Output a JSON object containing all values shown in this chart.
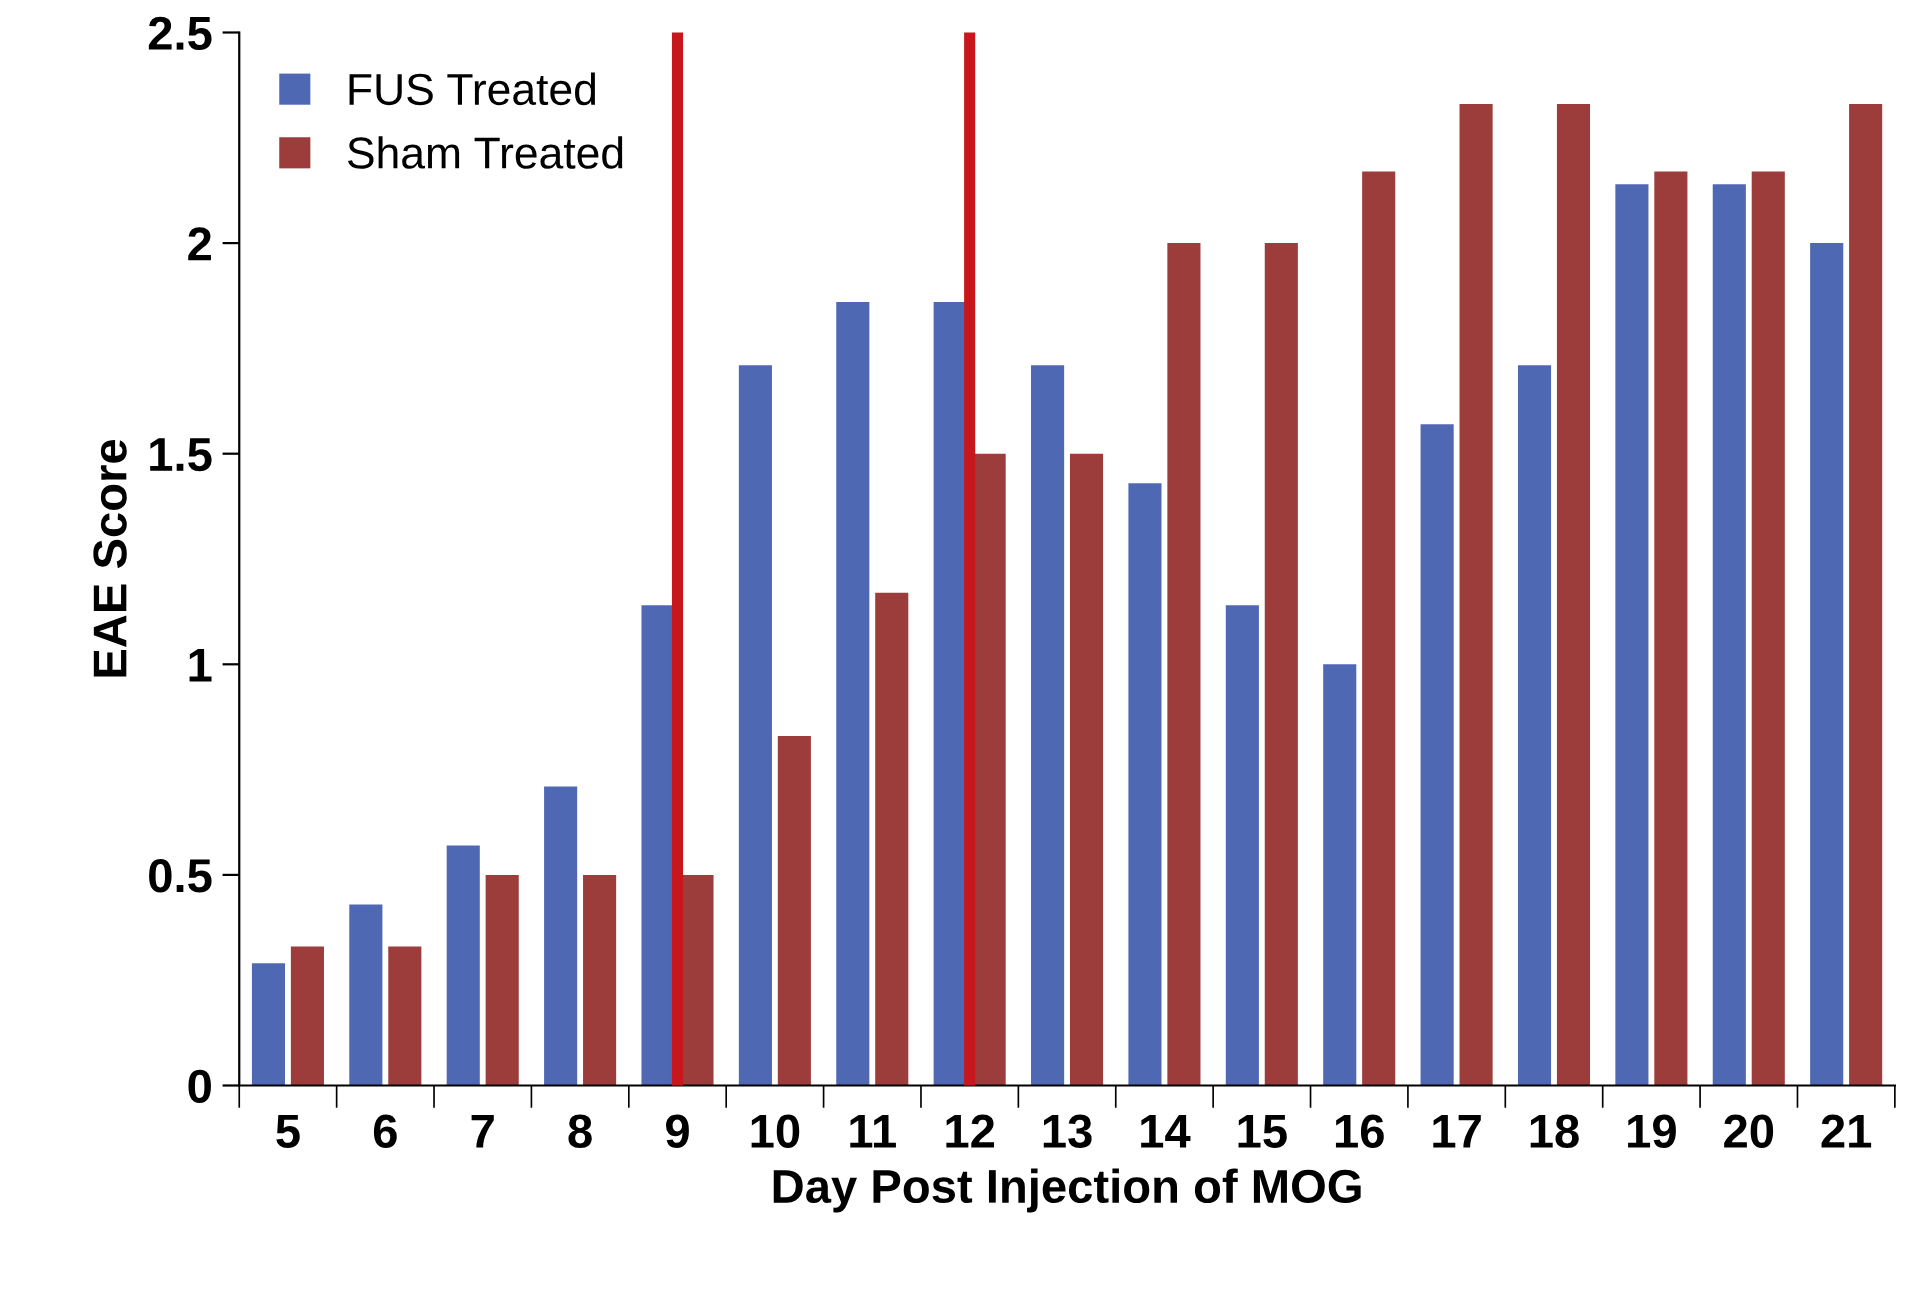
{
  "chart_data": {
    "type": "bar",
    "xlabel": "Day Post Injection of MOG",
    "ylabel": "EAE Score",
    "categories": [
      "5",
      "6",
      "7",
      "8",
      "9",
      "10",
      "11",
      "12",
      "13",
      "14",
      "15",
      "16",
      "17",
      "18",
      "19",
      "20",
      "21"
    ],
    "series": [
      {
        "name": "FUS Treated",
        "color": "#4f68b4",
        "values": [
          0.29,
          0.43,
          0.57,
          0.71,
          1.14,
          1.71,
          1.86,
          1.86,
          1.71,
          1.43,
          1.14,
          1.0,
          1.57,
          1.71,
          2.14,
          2.14,
          2.0
        ]
      },
      {
        "name": "Sham Treated",
        "color": "#9c3d3b",
        "values": [
          0.33,
          0.33,
          0.5,
          0.5,
          0.5,
          0.83,
          1.17,
          1.5,
          1.5,
          2.0,
          2.0,
          2.17,
          2.33,
          2.33,
          2.17,
          2.17,
          2.33
        ]
      }
    ],
    "ylim": [
      0,
      2.5
    ],
    "yticks": [
      0,
      0.5,
      1,
      1.5,
      2,
      2.5
    ],
    "ref_lines": [
      {
        "axis": "x",
        "value": "9",
        "color": "#c8161d"
      },
      {
        "axis": "x",
        "value": "12",
        "color": "#c8161d"
      }
    ],
    "legend": "top left",
    "grid": false
  }
}
